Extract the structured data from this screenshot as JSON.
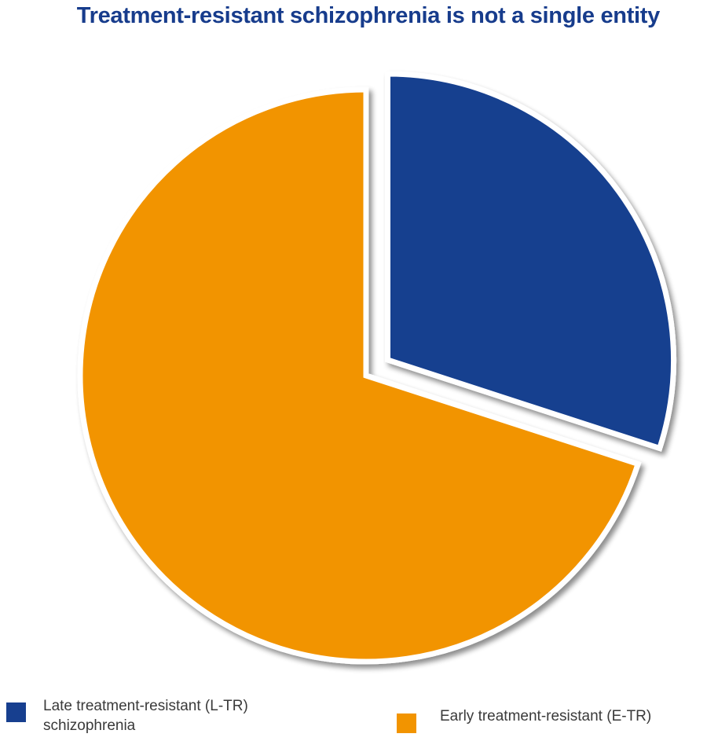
{
  "chart_data": {
    "type": "pie",
    "title": "Treatment-resistant schizophrenia is not a single entity",
    "slices": [
      {
        "label": "Late treatment-resistant (L-TR)\nschizophrenia",
        "value": 30,
        "color": "#173f8f",
        "exploded": true
      },
      {
        "label": "Early treatment-resistant (E-TR)",
        "value": 70,
        "color": "#f29400",
        "exploded": false
      }
    ],
    "legend_position": "bottom"
  }
}
